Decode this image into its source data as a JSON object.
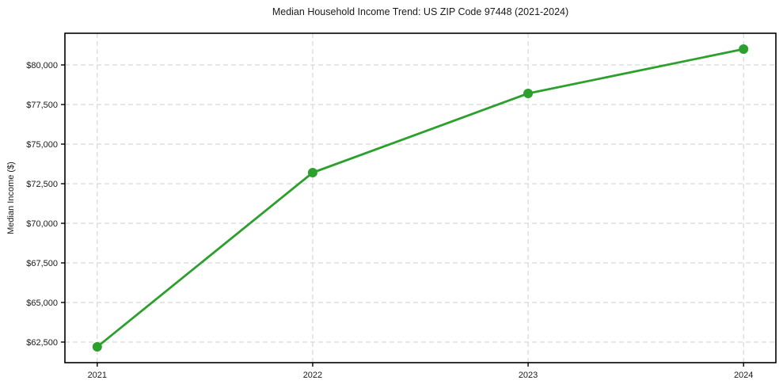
{
  "chart_data": {
    "type": "line",
    "title": "Median Household Income Trend: US ZIP Code 97448 (2021-2024)",
    "xlabel": "",
    "ylabel": "Median Income ($)",
    "x": [
      2021,
      2022,
      2023,
      2024
    ],
    "x_tick_labels": [
      "2021",
      "2022",
      "2023",
      "2024"
    ],
    "series": [
      {
        "name": "Median Household Income",
        "values": [
          62200,
          73200,
          78200,
          81000
        ],
        "marker": "circle"
      }
    ],
    "y_ticks": [
      62500,
      65000,
      67500,
      70000,
      72500,
      75000,
      77500,
      80000
    ],
    "y_tick_labels": [
      "$62,500",
      "$65,000",
      "$67,500",
      "$70,000",
      "$72,500",
      "$75,000",
      "$77,500",
      "$80,000"
    ],
    "xlim": [
      2020.85,
      2024.15
    ],
    "ylim": [
      61200,
      82000
    ],
    "grid": true,
    "grid_style": "dashed",
    "legend_position": "none"
  },
  "colors": {
    "line": "#2ca02c",
    "grid": "#cfcfcf",
    "axis": "#000000",
    "text": "#1a1a1a",
    "background": "#ffffff"
  }
}
